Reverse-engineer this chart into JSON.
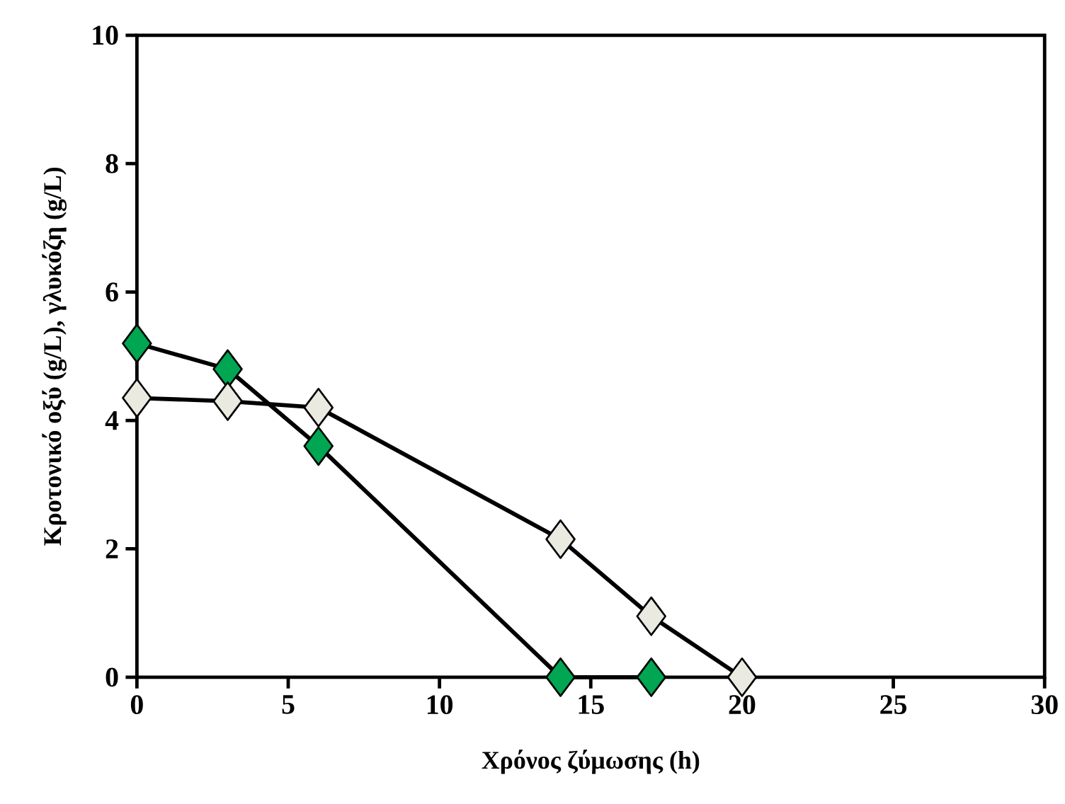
{
  "chart_data": {
    "type": "line",
    "xlabel": "Χρόνος ζύμωσης (h)",
    "ylabel": "Κροτονικό οξύ (g/L), γλυκόζη (g/L)",
    "series": [
      {
        "color": "#00a651",
        "x": [
          0,
          3,
          6,
          14,
          17
        ],
        "values": [
          5.2,
          4.8,
          3.6,
          0,
          0
        ]
      },
      {
        "color": "#ebeae0",
        "x": [
          0,
          3,
          6,
          14,
          17,
          20
        ],
        "values": [
          4.35,
          4.3,
          4.2,
          2.15,
          0.95,
          0
        ]
      }
    ],
    "xlim": [
      0,
      30
    ],
    "ylim": [
      0,
      10
    ],
    "xticks": [
      0,
      5,
      10,
      15,
      20,
      25,
      30
    ],
    "yticks": [
      0,
      2,
      4,
      6,
      8,
      10
    ],
    "marker": "diamond",
    "line_style": "solid"
  }
}
